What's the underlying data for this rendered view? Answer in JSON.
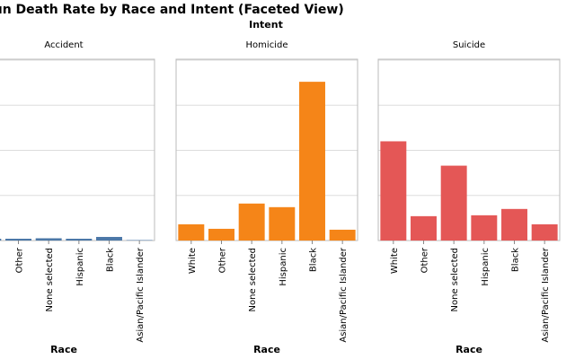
{
  "chart_data": {
    "type": "bar",
    "title": "Gun Death Rate by Race and Intent (Faceted View)",
    "facet_header": "Intent",
    "xlabel": "Race",
    "ylabel": "",
    "ylim": [
      0,
      20
    ],
    "grid": true,
    "legend": "none",
    "categories": [
      "White",
      "Other",
      "None selected",
      "Hispanic",
      "Black",
      "Asian/Pacific Islander"
    ],
    "facets": [
      {
        "name": "Accident",
        "color": "#4c78a8",
        "values": [
          0.2,
          0.2,
          0.25,
          0.2,
          0.4,
          0.05
        ]
      },
      {
        "name": "Homicide",
        "color": "#f58518",
        "values": [
          1.8,
          1.3,
          4.1,
          3.7,
          17.6,
          1.2
        ]
      },
      {
        "name": "Suicide",
        "color": "#e45756",
        "values": [
          11.0,
          2.7,
          8.3,
          2.8,
          3.5,
          1.8
        ]
      }
    ]
  },
  "colors": {
    "gridline": "#dddddd",
    "frame": "#bbbbbb"
  }
}
